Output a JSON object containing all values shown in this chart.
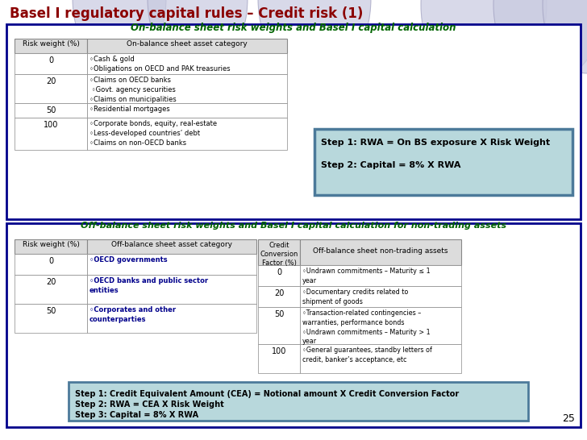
{
  "title": "Basel I regulatory capital rules – Credit risk (1)",
  "subtitle1": "On-balance sheet risk weights and Basel I capital calculation",
  "subtitle2": "Off-balance sheet risk weights and Basel I capital calculation for non-trading assets",
  "bg_color": "#FFFFFF",
  "title_color": "#8B0000",
  "subtitle_color": "#006400",
  "page_number": "25",
  "on_balance_table": {
    "headers": [
      "Risk weight (%)",
      "On-balance sheet asset category"
    ],
    "rows": [
      [
        "0",
        "◦Cash & gold\n◦Obligations on OECD and PAK treasuries"
      ],
      [
        "20",
        "◦Claims on OECD banks\n ◦Govt. agency securities\n◦Claims on municipalities"
      ],
      [
        "50",
        "◦Residential mortgages"
      ],
      [
        "100",
        "◦Corporate bonds, equity, real-estate\n◦Less-developed countries’ debt\n◦Claims on non-OECD banks"
      ]
    ]
  },
  "step_box1_lines": [
    "Step 1: RWA = On BS exposure X Risk Weight",
    "Step 2: Capital = 8% X RWA"
  ],
  "step_box1_bg": "#B8D8DC",
  "step_box1_border": "#4C7A9A",
  "off_balance_left_table": {
    "headers": [
      "Risk weight (%)",
      "Off-balance sheet asset category"
    ],
    "rows": [
      [
        "0",
        "◦OECD governments"
      ],
      [
        "20",
        "◦OECD banks and public sector\nentities"
      ],
      [
        "50",
        "◦Corporates and other\ncounterparties"
      ]
    ]
  },
  "off_balance_right_table": {
    "header_col1": "Credit\nConversion\nFactor (%)",
    "header_col2": "Off-balance sheet non-trading assets",
    "rows": [
      [
        "0",
        "◦Undrawn commitments – Maturity ≤ 1\nyear"
      ],
      [
        "20",
        "◦Documentary credits related to\nshipment of goods"
      ],
      [
        "50",
        "◦Transaction-related contingencies –\nwarranties, performance bonds\n◦Undrawn commitments – Maturity > 1\nyear"
      ],
      [
        "100",
        "◦General guarantees, standby letters of\ncredit, banker’s acceptance, etc"
      ]
    ]
  },
  "step_box2_lines": [
    "Step 1: Credit Equivalent Amount (CEA) = Notional amount X Credit Conversion Factor",
    "Step 2: RWA = CEA X Risk Weight",
    "Step 3: Capital = 8% X RWA"
  ],
  "step_box2_bg": "#B8D8DC",
  "step_box2_border": "#4C7A9A",
  "outer_border_color": "#00008B",
  "table_header_bg": "#DCDCDC",
  "table_border_color": "#888888",
  "bold_text_color": "#00008B",
  "circle_color": "#C8CAE0",
  "circle_outline": "#A0A0C0"
}
